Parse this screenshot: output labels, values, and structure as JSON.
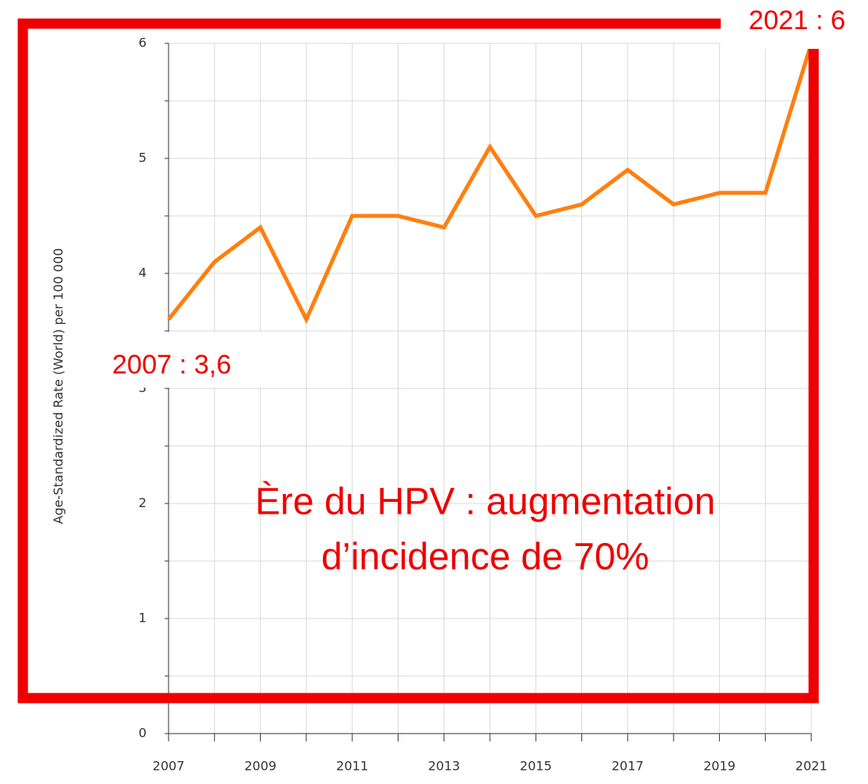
{
  "chart_data": {
    "type": "line",
    "y_axis_label": "Age-Standardized Rate (World) per 100 000",
    "x": [
      2007,
      2008,
      2009,
      2010,
      2011,
      2012,
      2013,
      2014,
      2015,
      2016,
      2017,
      2018,
      2019,
      2020,
      2021
    ],
    "series": [
      {
        "color": "#ff7f0e",
        "values": [
          3.6,
          4.1,
          4.4,
          3.6,
          4.5,
          4.5,
          4.4,
          5.1,
          4.5,
          4.6,
          4.9,
          4.6,
          4.7,
          4.7,
          6.0
        ]
      }
    ],
    "xlim": [
      2007,
      2021
    ],
    "xticks": [
      2007,
      2009,
      2011,
      2013,
      2015,
      2017,
      2019,
      2021
    ],
    "x_minor_ticks": [
      2008,
      2010,
      2012,
      2014,
      2016,
      2018,
      2020
    ],
    "ylim": [
      0,
      6
    ],
    "yticks": [
      0,
      1,
      2,
      3,
      4,
      5,
      6
    ],
    "y_minor_ticks": [
      0.5,
      1.5,
      2.5,
      3.5,
      4.5,
      5.5
    ],
    "grid": true,
    "annotations": {
      "end": "2021 : 6",
      "start": "2007 : 3,6",
      "message": [
        "Ère du HPV : augmentation",
        "d’incidence de 70%"
      ]
    }
  }
}
